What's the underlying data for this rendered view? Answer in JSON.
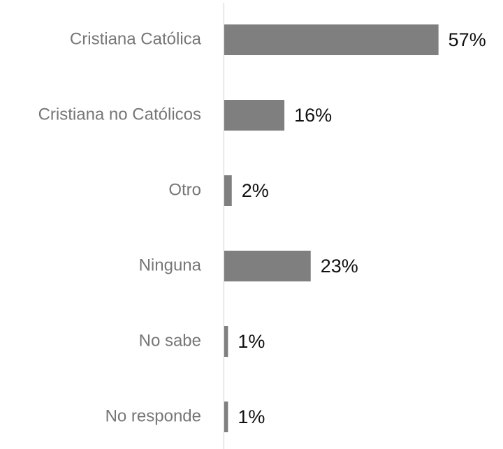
{
  "chart_data": {
    "type": "bar",
    "orientation": "horizontal",
    "categories": [
      "Cristiana Católica",
      "Cristiana no Católicos",
      "Otro",
      "Ninguna",
      "No sabe",
      "No responde"
    ],
    "values": [
      57,
      16,
      2,
      23,
      1,
      1
    ],
    "value_labels": [
      "57%",
      "16%",
      "2%",
      "23%",
      "1%",
      "1%"
    ],
    "color": "#7f7f7f"
  }
}
